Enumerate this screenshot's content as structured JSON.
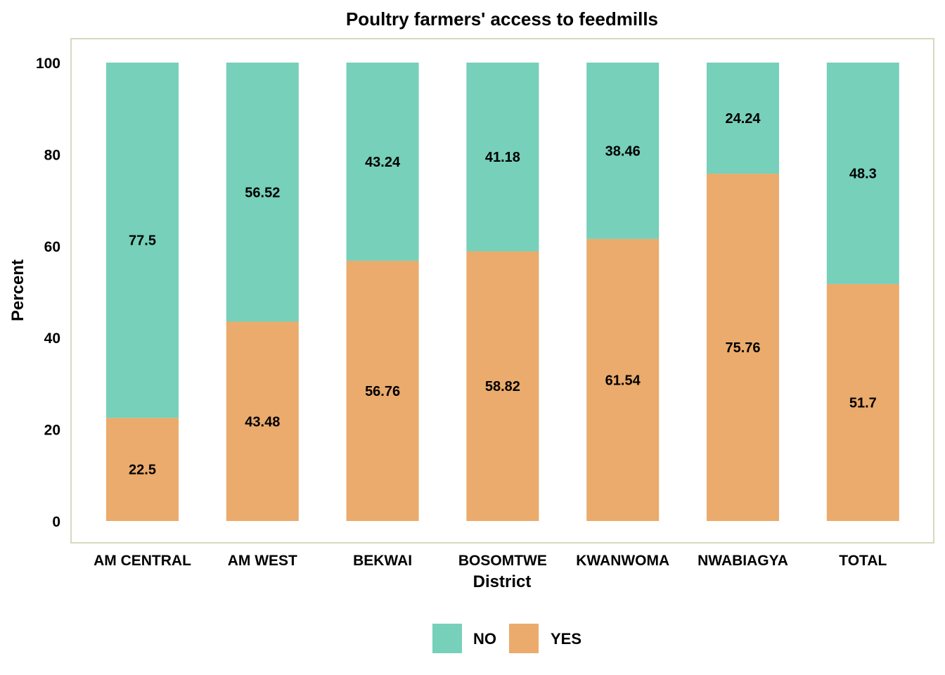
{
  "chart_data": {
    "type": "bar",
    "stacked": true,
    "title": "Poultry farmers' access to feedmills",
    "xlabel": "District",
    "ylabel": "Percent",
    "ylim": [
      0,
      100
    ],
    "yticks": [
      0,
      20,
      40,
      60,
      80,
      100
    ],
    "grid": false,
    "legend_position": "bottom",
    "categories": [
      "AM CENTRAL",
      "AM WEST",
      "BEKWAI",
      "BOSOMTWE",
      "KWANWOMA",
      "NWABIAGYA",
      "TOTAL"
    ],
    "series": [
      {
        "name": "YES",
        "color": "#EBAB6C",
        "values": [
          22.5,
          43.48,
          56.76,
          58.82,
          61.54,
          75.76,
          51.7
        ]
      },
      {
        "name": "NO",
        "color": "#76D0BA",
        "values": [
          77.5,
          56.52,
          43.24,
          41.18,
          38.46,
          24.24,
          48.3
        ]
      }
    ],
    "legend_order": [
      "NO",
      "YES"
    ],
    "panel_border_color": "#D8D8C0"
  }
}
